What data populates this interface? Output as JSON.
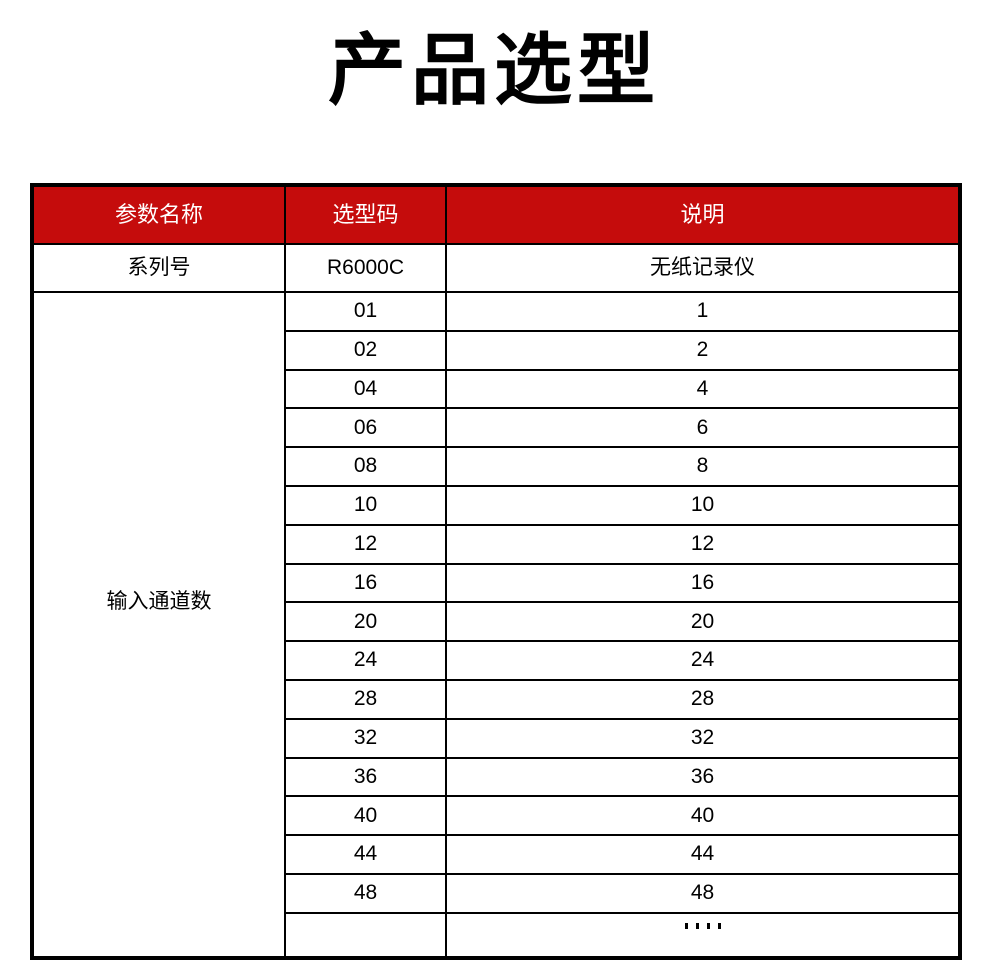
{
  "page": {
    "title": "产品选型"
  },
  "table": {
    "headers": [
      "参数名称",
      "选型码",
      "说明"
    ],
    "series": {
      "param": "系列号",
      "code": "R6000C",
      "desc": "无纸记录仪"
    },
    "channels": {
      "param": "输入通道数",
      "rows": [
        {
          "code": "01",
          "desc": "1"
        },
        {
          "code": "02",
          "desc": "2"
        },
        {
          "code": "04",
          "desc": "4"
        },
        {
          "code": "06",
          "desc": "6"
        },
        {
          "code": "08",
          "desc": "8"
        },
        {
          "code": "10",
          "desc": "10"
        },
        {
          "code": "12",
          "desc": "12"
        },
        {
          "code": "16",
          "desc": "16"
        },
        {
          "code": "20",
          "desc": "20"
        },
        {
          "code": "24",
          "desc": "24"
        },
        {
          "code": "28",
          "desc": "28"
        },
        {
          "code": "32",
          "desc": "32"
        },
        {
          "code": "36",
          "desc": "36"
        },
        {
          "code": "40",
          "desc": "40"
        },
        {
          "code": "44",
          "desc": "44"
        },
        {
          "code": "48",
          "desc": "48"
        }
      ]
    }
  },
  "colors": {
    "header_bg": "#C50C0C",
    "header_text": "#FFFFFF",
    "border": "#000000",
    "title_text": "#000000"
  }
}
